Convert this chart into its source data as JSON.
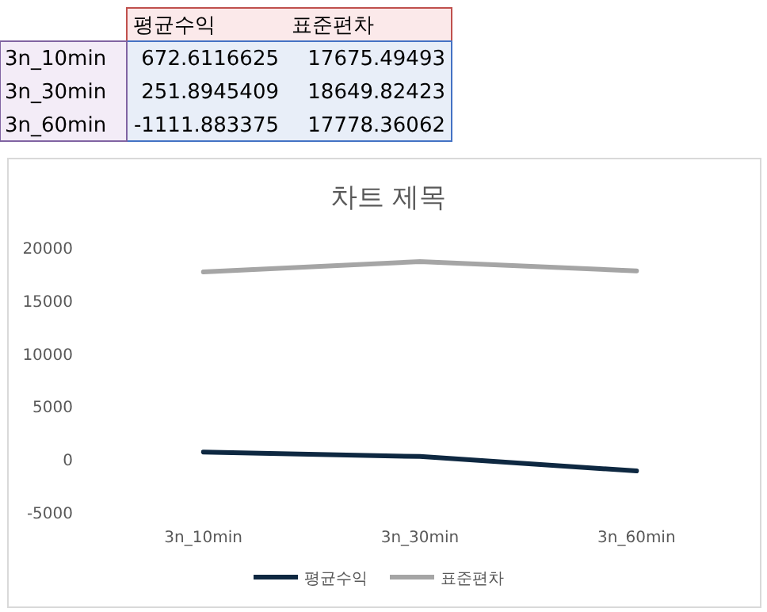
{
  "chart_data": {
    "type": "line",
    "title": "차트 제목",
    "categories": [
      "3n_10min",
      "3n_30min",
      "3n_60min"
    ],
    "series": [
      {
        "name": "평균수익",
        "color": "#0e2841",
        "values": [
          672.6116625,
          251.8945409,
          -1111.883375
        ]
      },
      {
        "name": "표준편차",
        "color": "#a5a5a5",
        "values": [
          17675.49493,
          18649.82423,
          17778.36062
        ]
      }
    ],
    "annotations": [
      "672.6116625",
      "17675.49493",
      "251.8945409",
      "18649.82423",
      "-1111.883375",
      "17778.36062"
    ],
    "ylim": [
      -5000,
      20000
    ],
    "yticks": [
      -5000,
      0,
      5000,
      10000,
      15000,
      20000
    ],
    "grid": false,
    "legend": "bottom",
    "marker": "none"
  }
}
